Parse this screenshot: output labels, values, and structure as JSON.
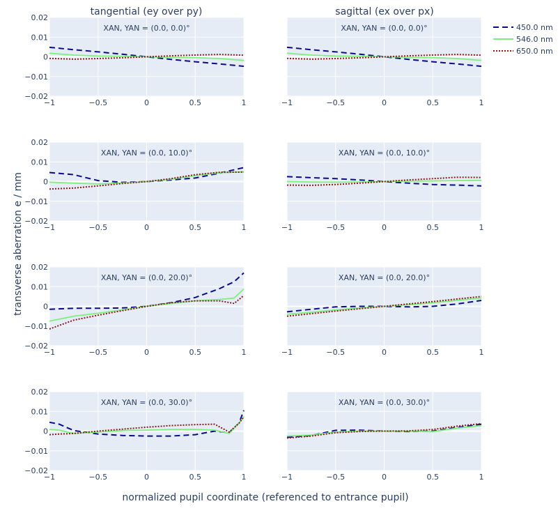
{
  "chart_data": {
    "type": "line",
    "column_titles": [
      "tangential (ey over py)",
      "sagittal (ex over px)"
    ],
    "xlabel": "normalized pupil coordinate (referenced to entrance pupil)",
    "ylabel": "transverse aberration e / mm",
    "xlim": [
      -1,
      1
    ],
    "ylim": [
      -0.02,
      0.02
    ],
    "xticks": [
      -1,
      -0.5,
      0,
      0.5,
      1
    ],
    "xtick_labels": [
      "−1",
      "−0.5",
      "0",
      "0.5",
      "1"
    ],
    "yticks": [
      0.02,
      0.01,
      0,
      -0.01,
      -0.02
    ],
    "ytick_labels": [
      "0.02",
      "0.01",
      "0",
      "−0.01",
      "−0.02"
    ],
    "grid": true,
    "legend_position": "top-right",
    "series_styles": [
      {
        "name": "450.0 nm",
        "color": "#0b0b8a",
        "dash": "dashed"
      },
      {
        "name": "546.0 nm",
        "color": "#7cf07c",
        "dash": "solid"
      },
      {
        "name": "650.0 nm",
        "color": "#8b1a1a",
        "dash": "dotted"
      }
    ],
    "panels": [
      {
        "row": 0,
        "col": 0,
        "annotation": "XAN, YAN = (0.0, 0.0)°",
        "x": [
          -1,
          -0.75,
          -0.5,
          -0.25,
          0,
          0.25,
          0.5,
          0.75,
          1
        ],
        "series": [
          {
            "name": "450.0 nm",
            "values": [
              0.0048,
              0.0036,
              0.0025,
              0.0013,
              0.0,
              -0.0013,
              -0.0025,
              -0.0036,
              -0.0048
            ]
          },
          {
            "name": "546.0 nm",
            "values": [
              0.0018,
              0.0009,
              0.0004,
              0.0002,
              0.0,
              -0.0002,
              -0.0004,
              -0.0009,
              -0.0018
            ]
          },
          {
            "name": "650.0 nm",
            "values": [
              -0.0008,
              -0.0012,
              -0.0009,
              -0.0005,
              0.0,
              0.0005,
              0.0009,
              0.0012,
              0.0008
            ]
          }
        ]
      },
      {
        "row": 0,
        "col": 1,
        "annotation": "XAN, YAN = (0.0, 0.0)°",
        "x": [
          -1,
          -0.75,
          -0.5,
          -0.25,
          0,
          0.25,
          0.5,
          0.75,
          1
        ],
        "series": [
          {
            "name": "450.0 nm",
            "values": [
              0.0048,
              0.0036,
              0.0025,
              0.0013,
              0.0,
              -0.0013,
              -0.0025,
              -0.0036,
              -0.0048
            ]
          },
          {
            "name": "546.0 nm",
            "values": [
              0.0018,
              0.0009,
              0.0004,
              0.0002,
              0.0,
              -0.0002,
              -0.0004,
              -0.0009,
              -0.0018
            ]
          },
          {
            "name": "650.0 nm",
            "values": [
              -0.0008,
              -0.0012,
              -0.0009,
              -0.0005,
              0.0,
              0.0005,
              0.0009,
              0.0012,
              0.0008
            ]
          }
        ]
      },
      {
        "row": 1,
        "col": 0,
        "annotation": "XAN, YAN = (0.0, 10.0)°",
        "x": [
          -1,
          -0.75,
          -0.5,
          -0.25,
          0,
          0.25,
          0.5,
          0.75,
          1
        ],
        "series": [
          {
            "name": "450.0 nm",
            "values": [
              0.0046,
              0.0035,
              0.0005,
              -0.0004,
              0.0,
              0.0008,
              0.0018,
              0.0043,
              0.0071
            ]
          },
          {
            "name": "546.0 nm",
            "values": [
              -0.0003,
              -0.0008,
              -0.0012,
              -0.0007,
              0.0,
              0.0012,
              0.003,
              0.0045,
              0.005
            ]
          },
          {
            "name": "650.0 nm",
            "values": [
              -0.0038,
              -0.0033,
              -0.0022,
              -0.001,
              0.0,
              0.0015,
              0.0035,
              0.0047,
              0.0048
            ]
          }
        ]
      },
      {
        "row": 1,
        "col": 1,
        "annotation": "XAN, YAN = (0.0, 10.0)°",
        "x": [
          -1,
          -0.75,
          -0.5,
          -0.25,
          0,
          0.25,
          0.5,
          0.75,
          1
        ],
        "series": [
          {
            "name": "450.0 nm",
            "values": [
              0.0025,
              0.002,
              0.0015,
              0.0008,
              0.0,
              -0.0008,
              -0.0015,
              -0.0018,
              -0.0022
            ]
          },
          {
            "name": "546.0 nm",
            "values": [
              0.0,
              -0.0002,
              -0.0003,
              -0.0002,
              0.0,
              0.0002,
              0.0003,
              0.0005,
              0.0006
            ]
          },
          {
            "name": "650.0 nm",
            "values": [
              -0.0018,
              -0.0019,
              -0.0015,
              -0.0008,
              0.0,
              0.0008,
              0.0015,
              0.0022,
              0.0021
            ]
          }
        ]
      },
      {
        "row": 2,
        "col": 0,
        "annotation": "XAN, YAN = (0.0, 20.0)°",
        "x": [
          -1,
          -0.75,
          -0.5,
          -0.25,
          0,
          0.25,
          0.5,
          0.75,
          0.9,
          1
        ],
        "series": [
          {
            "name": "450.0 nm",
            "values": [
              -0.0015,
              -0.001,
              -0.001,
              -0.0008,
              0.0,
              0.0018,
              0.0045,
              0.009,
              0.0125,
              0.017
            ]
          },
          {
            "name": "546.0 nm",
            "values": [
              -0.0075,
              -0.005,
              -0.0035,
              -0.0018,
              0.0,
              0.0015,
              0.0028,
              0.0035,
              0.0042,
              0.0088
            ]
          },
          {
            "name": "650.0 nm",
            "values": [
              -0.0115,
              -0.007,
              -0.0045,
              -0.0022,
              0.0,
              0.0018,
              0.0028,
              0.0028,
              0.0015,
              0.0055
            ]
          }
        ]
      },
      {
        "row": 2,
        "col": 1,
        "annotation": "XAN, YAN = (0.0, 20.0)°",
        "x": [
          -1,
          -0.75,
          -0.5,
          -0.25,
          0,
          0.25,
          0.5,
          0.75,
          1
        ],
        "series": [
          {
            "name": "450.0 nm",
            "values": [
              -0.0028,
              -0.0015,
              -0.0003,
              0.0,
              0.0,
              -0.0003,
              0.0,
              0.0012,
              0.003
            ]
          },
          {
            "name": "546.0 nm",
            "values": [
              -0.004,
              -0.003,
              -0.0018,
              -0.0008,
              0.0,
              0.0008,
              0.0018,
              0.003,
              0.0042
            ]
          },
          {
            "name": "650.0 nm",
            "values": [
              -0.005,
              -0.0037,
              -0.0024,
              -0.0012,
              0.0,
              0.0012,
              0.0024,
              0.0037,
              0.005
            ]
          }
        ]
      },
      {
        "row": 3,
        "col": 0,
        "annotation": "XAN, YAN = (0.0, 30.0)°",
        "x": [
          -1,
          -0.9,
          -0.75,
          -0.5,
          -0.25,
          0,
          0.25,
          0.5,
          0.7,
          0.85,
          0.95,
          1
        ],
        "series": [
          {
            "name": "450.0 nm",
            "values": [
              0.0045,
              0.0035,
              0.0003,
              -0.0015,
              -0.0022,
              -0.0025,
              -0.0025,
              -0.0018,
              0.0,
              -0.0008,
              0.004,
              0.0105
            ]
          },
          {
            "name": "546.0 nm",
            "values": [
              0.0008,
              0.0005,
              -0.0012,
              -0.0005,
              0.0003,
              0.0005,
              0.0008,
              0.0008,
              0.0005,
              -0.0012,
              0.004,
              0.0075
            ]
          },
          {
            "name": "650.0 nm",
            "values": [
              -0.0018,
              -0.0015,
              -0.0012,
              0.0,
              0.001,
              0.002,
              0.0028,
              0.0033,
              0.0035,
              -0.0005,
              0.004,
              0.0072
            ]
          }
        ]
      },
      {
        "row": 3,
        "col": 1,
        "annotation": "XAN, YAN = (0.0, 30.0)°",
        "x": [
          -1,
          -0.75,
          -0.5,
          -0.25,
          0,
          0.25,
          0.5,
          0.75,
          1
        ],
        "series": [
          {
            "name": "450.0 nm",
            "values": [
              -0.0032,
              -0.0022,
              0.0004,
              0.0005,
              0.0,
              -0.0002,
              0.0,
              0.0018,
              0.0035
            ]
          },
          {
            "name": "546.0 nm",
            "values": [
              -0.0025,
              -0.002,
              -0.0005,
              0.0,
              0.0,
              0.0,
              -0.0003,
              0.0015,
              0.0028
            ]
          },
          {
            "name": "650.0 nm",
            "values": [
              -0.0035,
              -0.0025,
              -0.0008,
              -0.0002,
              0.0,
              0.0001,
              0.0008,
              0.0025,
              0.0038
            ]
          }
        ]
      }
    ]
  }
}
